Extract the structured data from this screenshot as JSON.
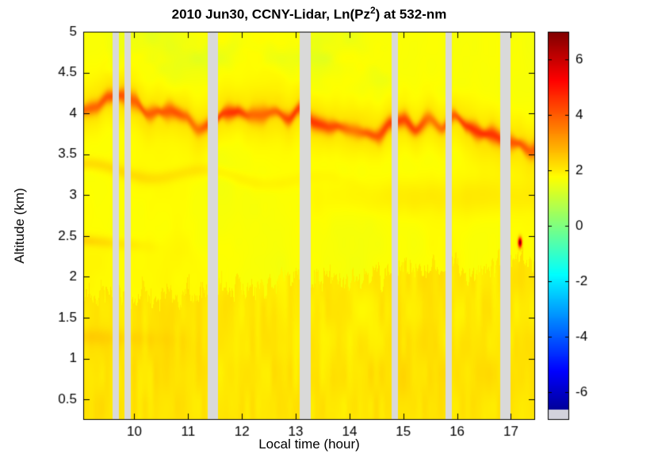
{
  "figure": {
    "background": "#ffffff"
  },
  "chart_data": {
    "type": "heatmap",
    "title": "2010 Jun30, CCNY-Lidar, Ln(Pz²) at 532-nm",
    "title_parts": {
      "prefix": "2010 Jun30, CCNY-Lidar, Ln(Pz",
      "sup": "2",
      "suffix": ") at 532-nm"
    },
    "xlabel": "Local time (hour)",
    "ylabel": "Altitude (km)",
    "xlim": [
      9.05,
      17.45
    ],
    "ylim": [
      0.25,
      5.0
    ],
    "x_ticks": [
      10,
      11,
      12,
      13,
      14,
      15,
      16,
      17
    ],
    "y_ticks": [
      0.5,
      1,
      1.5,
      2,
      2.5,
      3,
      3.5,
      4,
      4.5,
      5
    ],
    "grid": false,
    "colormap": "jet",
    "colorbar": {
      "position": "right",
      "range": [
        -7,
        7
      ],
      "ticks": [
        6,
        4,
        2,
        0,
        -2,
        -4,
        -6
      ],
      "under_color": "#d2d2dc"
    },
    "gap_color": "#d9d9d9",
    "missing_data_gaps_hours": [
      [
        9.6,
        9.72
      ],
      [
        9.82,
        9.94
      ],
      [
        11.36,
        11.56
      ],
      [
        13.08,
        13.28
      ],
      [
        14.79,
        14.9
      ],
      [
        15.79,
        15.9
      ],
      [
        16.8,
        17.0
      ]
    ],
    "features": [
      "uniform clear-air signal ~1.5-2 (yellow) over most of the time-height domain",
      "convective boundary layer below ~1.8-2.2 km with slightly stronger signal ~2.2-2.6 and fine vertical texture",
      "strong elevated aerosol layer near 3.7-4.2 km (signal ~3-4.5, orange/red streak) slowly descending through the day",
      "weaker secondary thin layer near 3.1-3.4 km before ~14 h",
      "early-morning enhanced bands near 1.25 km and 2.45 km",
      "small very strong echo (~6.5, dark red) near 17.2 h at 2.4 km altitude",
      "pale yellow-green low-signal patches above ~4.2 km in the afternoon",
      "vertical light-gray stripes mark times with no lidar data"
    ],
    "field_model": {
      "background": 1.7,
      "mottle_amp": 0.14,
      "upper_green": {
        "z_start": 4.0,
        "amp": 0.5
      },
      "boundary_layer": {
        "top_base": 1.72,
        "top_slope": 0.055,
        "spike_amp": 0.26,
        "amp": 0.45
      },
      "near_ground_afternoon": {
        "amp": 0.12,
        "z_center": 0.7,
        "z_sigma": 0.55,
        "t_start": 12,
        "t_ramp": 3
      },
      "early_band_low": {
        "z0": 1.27,
        "slope": -0.02,
        "sigma": 0.1,
        "amp": 0.3,
        "t_fade": 2.2
      },
      "early_band_mid": {
        "z0": 2.45,
        "slope": -0.06,
        "sigma": 0.07,
        "amp": 0.55,
        "t_fade": 1.6
      },
      "main_layer": {
        "z0": 4.08,
        "slope": -0.042,
        "wave_amp": 0.1,
        "wave_freq": 2.1,
        "jitter": 0.1,
        "width_base": 0.055,
        "width_var": 0.05,
        "amp_base": 1.3,
        "amp_var": 1.1,
        "halo_amp": 0.45,
        "halo_sigma": 0.3
      },
      "secondary_layer": {
        "z0": 3.32,
        "slope": -0.035,
        "wave_amp": 0.07,
        "wave_freq": 2.9,
        "sigma": 0.08,
        "amp": 0.5,
        "t_fade": 5.5
      },
      "afternoon_band": {
        "z_center": 2.98,
        "sigma": 0.22,
        "amp": 0.28,
        "t_start": 13,
        "t_ramp": 1.5
      },
      "left_step": {
        "z_top": 2.6,
        "amp": 0.08
      },
      "hot_spot": {
        "t": 17.17,
        "z": 2.42,
        "t_sigma": 0.035,
        "z_sigma": 0.06,
        "amp": 5.4
      }
    }
  }
}
